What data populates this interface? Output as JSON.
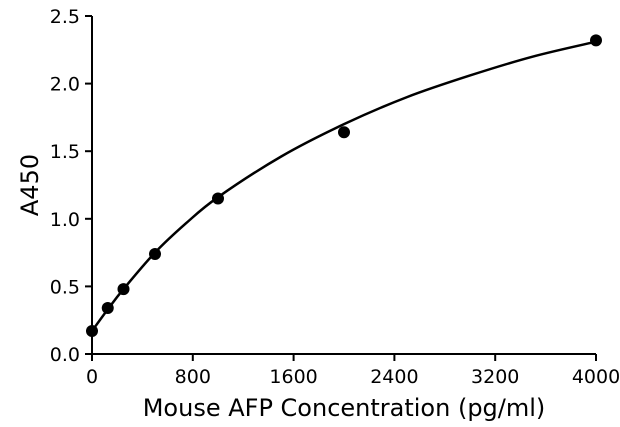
{
  "chart_data": {
    "type": "scatter",
    "title": "",
    "xlabel": "Mouse AFP Concentration (pg/ml)",
    "ylabel": "A450",
    "xlim": [
      0,
      4000
    ],
    "ylim": [
      0,
      2.5
    ],
    "x_ticks": [
      0,
      800,
      1600,
      2400,
      3200,
      4000
    ],
    "y_ticks": [
      0.0,
      0.5,
      1.0,
      1.5,
      2.0,
      2.5
    ],
    "x_tick_labels": [
      "0",
      "800",
      "1600",
      "2400",
      "3200",
      "4000"
    ],
    "y_tick_labels": [
      "0.0",
      "0.5",
      "1.0",
      "1.5",
      "2.0",
      "2.5"
    ],
    "grid": false,
    "legend": "none",
    "series": [
      {
        "x": [
          0,
          125,
          250,
          500,
          1000,
          2000,
          4000
        ],
        "y": [
          0.17,
          0.34,
          0.48,
          0.74,
          1.15,
          1.64,
          2.32
        ],
        "marker": "circle",
        "color": "#000000"
      }
    ],
    "fit_curve": {
      "model": "4PL",
      "x": [
        0,
        125,
        250,
        500,
        750,
        1000,
        1500,
        2000,
        2500,
        3000,
        3500,
        4000
      ],
      "y": [
        0.17,
        0.33,
        0.48,
        0.75,
        0.97,
        1.16,
        1.46,
        1.7,
        1.9,
        2.06,
        2.2,
        2.31
      ],
      "color": "#000000"
    }
  }
}
